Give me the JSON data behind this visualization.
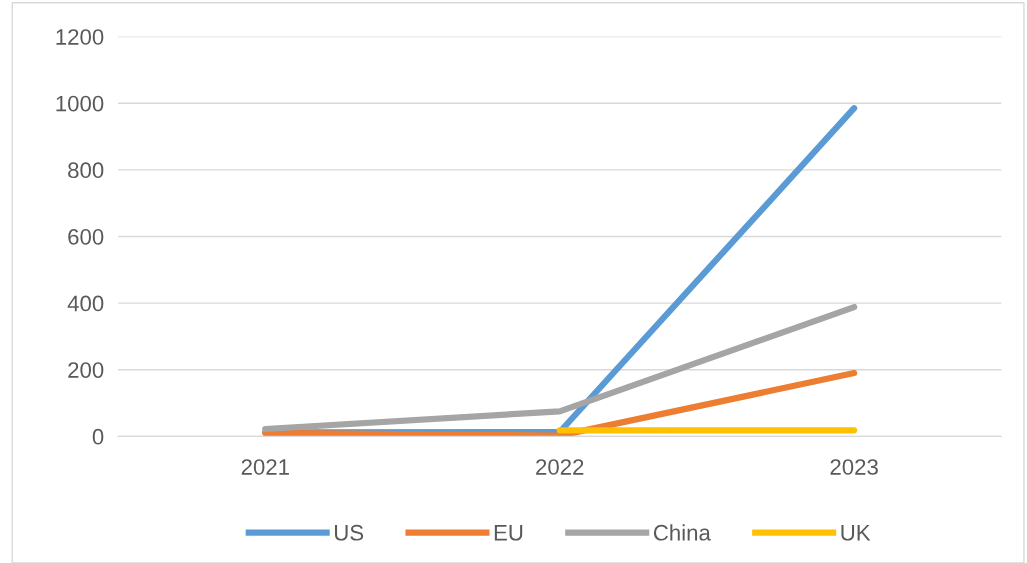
{
  "chart_data": {
    "type": "line",
    "categories": [
      "2021",
      "2022",
      "2023"
    ],
    "series": [
      {
        "name": "US",
        "color": "#5b9bd5",
        "values": [
          12,
          13,
          985
        ]
      },
      {
        "name": "EU",
        "color": "#ed7d31",
        "values": [
          10,
          2,
          190
        ]
      },
      {
        "name": "China",
        "color": "#a5a5a5",
        "values": [
          22,
          75,
          388
        ]
      },
      {
        "name": "UK",
        "color": "#ffc000",
        "values": [
          null,
          18,
          18
        ]
      }
    ],
    "ylim": [
      0,
      1200
    ],
    "yticks": [
      0,
      200,
      400,
      600,
      800,
      1000,
      1200
    ],
    "grid": "y",
    "legend": "bottom",
    "marker": "none",
    "line_style": "solid"
  }
}
